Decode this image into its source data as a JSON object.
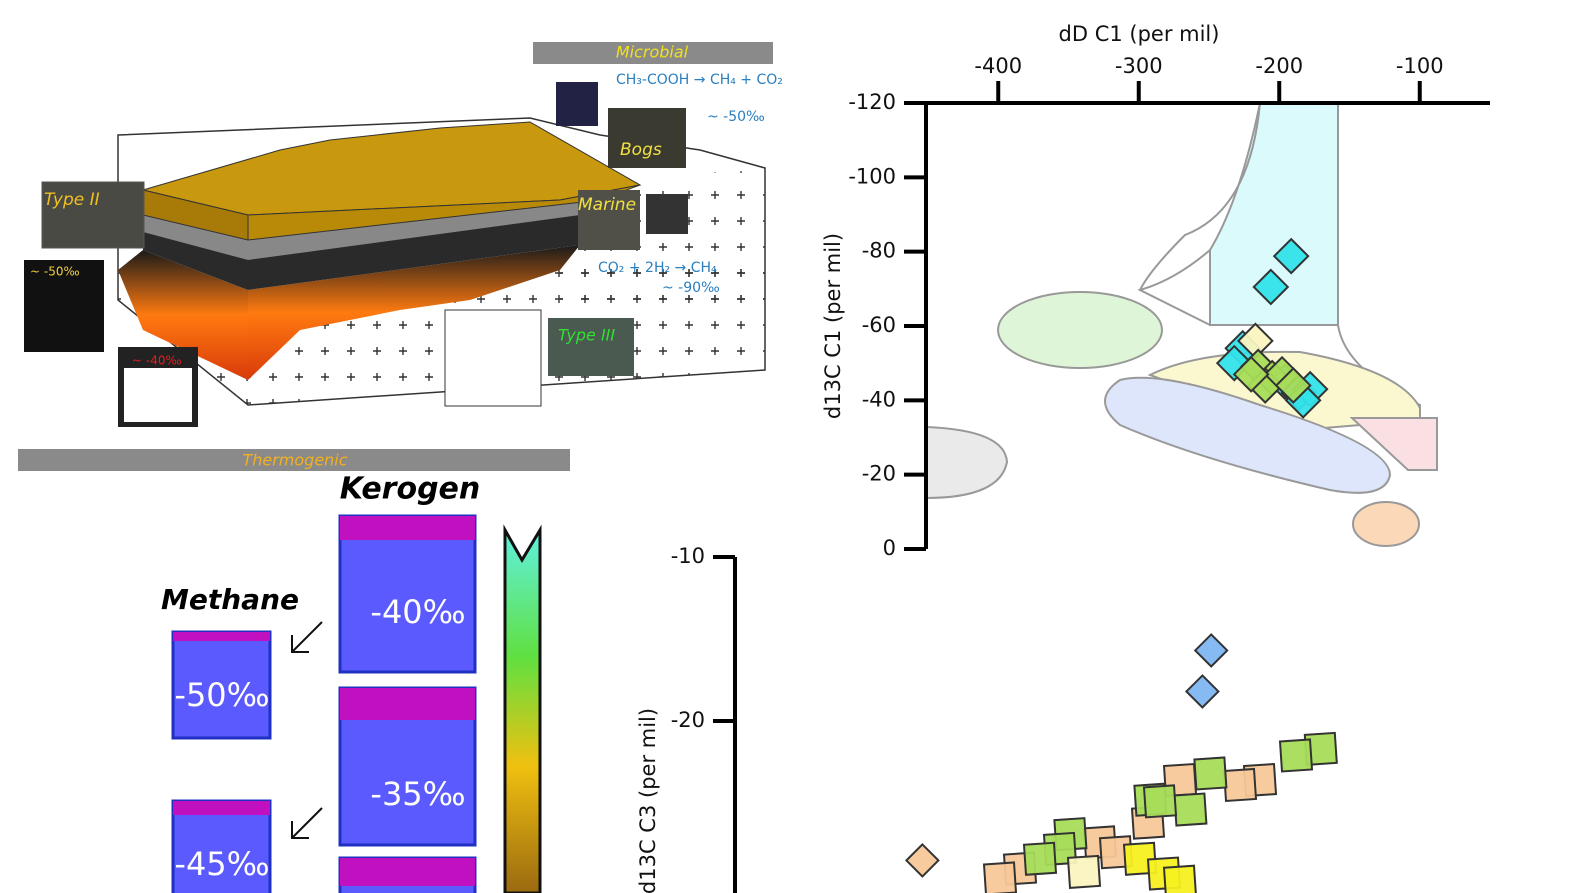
{
  "chart_data": [
    {
      "type": "scatter",
      "x_label": "dD C1 (per mil)",
      "y_label": "d13C C1 (per mil)",
      "xaxis": "top",
      "xlim": [
        -450,
        -50
      ],
      "xticks": [
        -400,
        -300,
        -200,
        -100
      ],
      "ylim": [
        0,
        -120
      ],
      "yticks": [
        0,
        -20,
        -40,
        -60,
        -80,
        -100,
        -120
      ],
      "series": [
        {
          "color": "#33e3ea",
          "marker": "diamond",
          "x": [
            -191.5,
            -206,
            -226,
            -232,
            -196,
            -186,
            -178,
            -183
          ],
          "values": [
            -78.8,
            -70.5,
            -54,
            -50,
            -45,
            -42,
            -43,
            -40
          ]
        },
        {
          "color": "#fbf3c0",
          "marker": "diamond",
          "x": [
            -217
          ],
          "values": [
            -56
          ]
        },
        {
          "color": "#a8dc5a",
          "marker": "diamond",
          "x": [
            -215,
            -205,
            -210,
            -198,
            -220,
            -190
          ],
          "values": [
            -49,
            -46,
            -44,
            -47,
            -47,
            -44
          ]
        }
      ]
    },
    {
      "type": "scatter",
      "y_label": "d13C C3 (per mil)",
      "xlim": [
        0,
        100
      ],
      "ylim": [
        -30,
        -10
      ],
      "yticks": [
        -10,
        -20
      ],
      "series": [
        {
          "color": "#7fb6f2",
          "marker": "diamond",
          "x": [
            58.9,
            57.8
          ],
          "values": [
            -15.7,
            -18.2
          ]
        },
        {
          "color": "#f7c898",
          "marker": "diamond",
          "x": [
            22.8
          ],
          "values": [
            -28.5
          ]
        },
        {
          "color": "#f7c898",
          "marker": "square",
          "x": [
            65,
            62.5,
            55,
            51,
            45,
            35,
            32.5,
            47
          ],
          "values": [
            -23.6,
            -23.9,
            -23.6,
            -26.2,
            -27.4,
            -29.0,
            -29.6,
            -28
          ]
        },
        {
          "color": "#a8dc5a",
          "marker": "square",
          "x": [
            72.6,
            69.5,
            58.8,
            56.3,
            51.3,
            41.3,
            40,
            37.5,
            52.5
          ],
          "values": [
            -21.7,
            -22.1,
            -23.2,
            -25.4,
            -24.8,
            -26.9,
            -27.8,
            -28.4,
            -24.9
          ]
        },
        {
          "color": "#f5f020",
          "marker": "square",
          "x": [
            50,
            53,
            55
          ],
          "values": [
            -28.4,
            -29.3,
            -29.8
          ]
        },
        {
          "color": "#fbf3c0",
          "marker": "square",
          "x": [
            43
          ],
          "values": [
            -29.2
          ]
        }
      ]
    }
  ],
  "diagram": {
    "microbial": "Microbial",
    "acetate_reaction": "CH₃-COOH → CH₄ + CO₂",
    "acetate_value": "~ -50‰",
    "bogs": "Bogs",
    "type_ii": "Type II",
    "type_ii_value": "~ -50‰",
    "type_iii_value": "~ -40‰",
    "marine": "Marine",
    "co2_reaction": "CO₂ + 2H₂ → CH₄",
    "co2_value": "~ -90‰",
    "type_iii": "Type III",
    "thermogenic": "Thermogenic",
    "kerogen": "Kerogen",
    "methane": "Methane",
    "kerogen_boxes": [
      "-40‰",
      "-35‰"
    ],
    "methane_boxes": [
      "-50‰",
      "-45‰"
    ]
  }
}
